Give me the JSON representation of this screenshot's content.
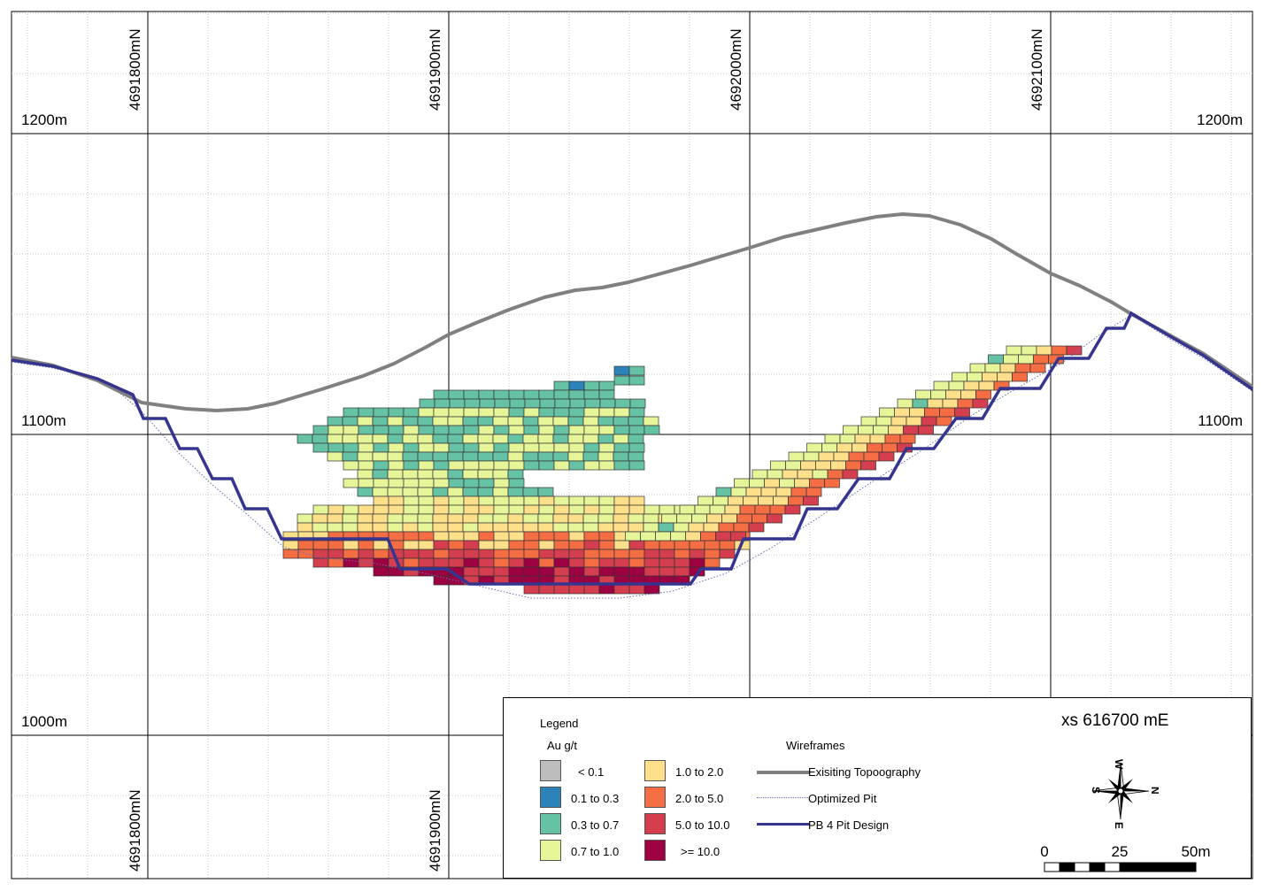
{
  "northing_labels_top": [
    "4691800mN",
    "4691900mN",
    "4692000mN",
    "4692100mN"
  ],
  "northing_labels_bottom": [
    "4691800mN",
    "4691900mN"
  ],
  "elevation_labels": {
    "left_1200": "1200m",
    "right_1200": "1200m",
    "left_1100": "1100m",
    "right_1100": "1100m",
    "left_1000": "1000m"
  },
  "legend": {
    "title": "Legend",
    "unit": "Au g/t",
    "grade_classes": [
      {
        "label": "< 0.1",
        "color": "#bdbdbd"
      },
      {
        "label": "0.1 to 0.3",
        "color": "#2b83ba"
      },
      {
        "label": "0.3 to 0.7",
        "color": "#66c2a5"
      },
      {
        "label": "0.7 to 1.0",
        "color": "#e6f598"
      },
      {
        "label": "1.0 to 2.0",
        "color": "#fee08b"
      },
      {
        "label": "2.0 to 5.0",
        "color": "#f46d43"
      },
      {
        "label": "5.0 to 10.0",
        "color": "#d53e4f"
      },
      {
        "label": ">= 10.0",
        "color": "#9e0142"
      }
    ],
    "wireframes_title": "Wireframes",
    "wireframes": [
      {
        "label": "Exisiting Topoography",
        "color": "#808080",
        "style": "solid"
      },
      {
        "label": "Optimized Pit",
        "color": "#6a6ab0",
        "style": "dotted"
      },
      {
        "label": "PB 4 Pit Design",
        "color": "#35358f",
        "style": "solid"
      }
    ]
  },
  "section_label": "xs 616700 mE",
  "compass": {
    "w": "W",
    "n": "N",
    "s": "S",
    "e": "E"
  },
  "scale": {
    "labels": [
      "0",
      "25",
      "50m"
    ]
  }
}
